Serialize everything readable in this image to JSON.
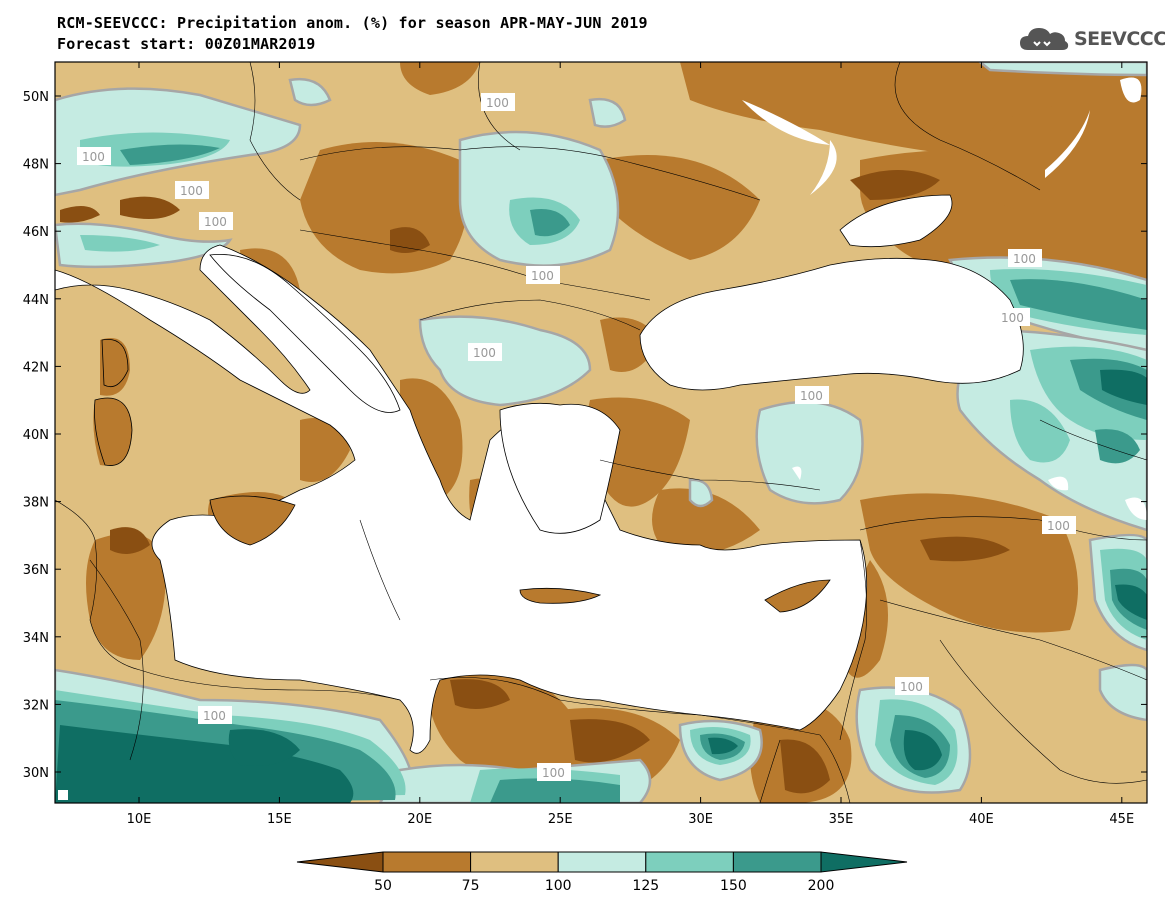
{
  "header": {
    "title_line1": "RCM-SEEVCCC: Precipitation anom. (%) for season APR-MAY-JUN 2019",
    "title_line2": "Forecast start: 00Z01MAR2019",
    "logo_text": "SEEVCCC"
  },
  "map": {
    "lon_ticks": [
      "10E",
      "15E",
      "20E",
      "25E",
      "30E",
      "35E",
      "40E",
      "45E"
    ],
    "lat_ticks": [
      "50N",
      "48N",
      "46N",
      "44N",
      "42N",
      "40N",
      "38N",
      "36N",
      "34N",
      "32N",
      "30N"
    ],
    "contour_labels": [
      "100",
      "100",
      "100",
      "100",
      "100",
      "100",
      "100",
      "100",
      "100",
      "100",
      "100",
      "100",
      "100"
    ]
  },
  "colorbar": {
    "levels": [
      "50",
      "75",
      "100",
      "125",
      "150",
      "200"
    ],
    "colors": {
      "below_50": "#8a4f12",
      "50_75": "#b87a2e",
      "75_100": "#dfbf80",
      "100_125": "#c5ebe2",
      "125_150": "#7dcfbd",
      "150_200": "#3b9a8c",
      "above_200": "#0f6e63",
      "contour_100": "#a6a6a6",
      "sea": "#ffffff"
    }
  }
}
